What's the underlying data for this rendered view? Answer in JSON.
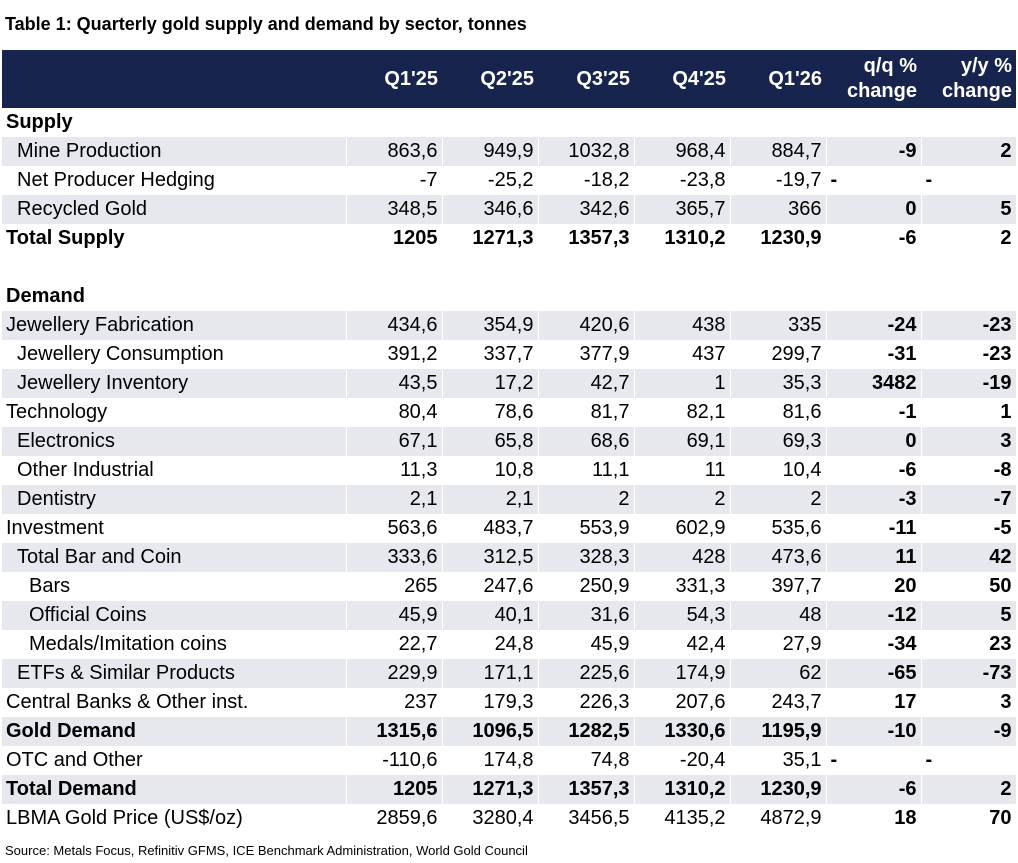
{
  "title": "Table 1: Quarterly gold supply and demand by sector, tonnes",
  "headers": [
    "",
    "Q1'25",
    "Q2'25",
    "Q3'25",
    "Q4'25",
    "Q1'26",
    "q/q % change",
    "y/y % change"
  ],
  "sections": [
    {
      "name": "Supply",
      "rows": [
        {
          "label": "Mine Production",
          "indent": 1,
          "bold": false,
          "shaded": true,
          "values": [
            "863,6",
            "949,9",
            "1032,8",
            "968,4",
            "884,7"
          ],
          "qq": "-9",
          "yy": "2"
        },
        {
          "label": "Net Producer Hedging",
          "indent": 1,
          "bold": false,
          "shaded": false,
          "values": [
            "-7",
            "-25,2",
            "-18,2",
            "-23,8",
            "-19,7"
          ],
          "qq": "-",
          "yy": "-"
        },
        {
          "label": "Recycled Gold",
          "indent": 1,
          "bold": false,
          "shaded": true,
          "values": [
            "348,5",
            "346,6",
            "342,6",
            "365,7",
            "366"
          ],
          "qq": "0",
          "yy": "5"
        },
        {
          "label": "Total Supply",
          "indent": 0,
          "bold": true,
          "shaded": false,
          "values": [
            "1205",
            "1271,3",
            "1357,3",
            "1310,2",
            "1230,9"
          ],
          "qq": "-6",
          "yy": "2"
        }
      ]
    },
    {
      "name": "Demand",
      "rows": [
        {
          "label": "Jewellery Fabrication",
          "indent": 0,
          "bold": false,
          "shaded": true,
          "values": [
            "434,6",
            "354,9",
            "420,6",
            "438",
            "335"
          ],
          "qq": "-24",
          "yy": "-23"
        },
        {
          "label": "Jewellery Consumption",
          "indent": 1,
          "bold": false,
          "shaded": false,
          "values": [
            "391,2",
            "337,7",
            "377,9",
            "437",
            "299,7"
          ],
          "qq": "-31",
          "yy": "-23"
        },
        {
          "label": "Jewellery Inventory",
          "indent": 1,
          "bold": false,
          "shaded": true,
          "values": [
            "43,5",
            "17,2",
            "42,7",
            "1",
            "35,3"
          ],
          "qq": "3482",
          "yy": "-19"
        },
        {
          "label": "Technology",
          "indent": 0,
          "bold": false,
          "shaded": false,
          "values": [
            "80,4",
            "78,6",
            "81,7",
            "82,1",
            "81,6"
          ],
          "qq": "-1",
          "yy": "1"
        },
        {
          "label": "Electronics",
          "indent": 1,
          "bold": false,
          "shaded": true,
          "values": [
            "67,1",
            "65,8",
            "68,6",
            "69,1",
            "69,3"
          ],
          "qq": "0",
          "yy": "3"
        },
        {
          "label": "Other Industrial",
          "indent": 1,
          "bold": false,
          "shaded": false,
          "values": [
            "11,3",
            "10,8",
            "11,1",
            "11",
            "10,4"
          ],
          "qq": "-6",
          "yy": "-8"
        },
        {
          "label": "Dentistry",
          "indent": 1,
          "bold": false,
          "shaded": true,
          "values": [
            "2,1",
            "2,1",
            "2",
            "2",
            "2"
          ],
          "qq": "-3",
          "yy": "-7"
        },
        {
          "label": "Investment",
          "indent": 0,
          "bold": false,
          "shaded": false,
          "values": [
            "563,6",
            "483,7",
            "553,9",
            "602,9",
            "535,6"
          ],
          "qq": "-11",
          "yy": "-5"
        },
        {
          "label": "Total Bar and Coin",
          "indent": 1,
          "bold": false,
          "shaded": true,
          "values": [
            "333,6",
            "312,5",
            "328,3",
            "428",
            "473,6"
          ],
          "qq": "11",
          "yy": "42"
        },
        {
          "label": "Bars",
          "indent": 2,
          "bold": false,
          "shaded": false,
          "values": [
            "265",
            "247,6",
            "250,9",
            "331,3",
            "397,7"
          ],
          "qq": "20",
          "yy": "50"
        },
        {
          "label": "Official Coins",
          "indent": 2,
          "bold": false,
          "shaded": true,
          "values": [
            "45,9",
            "40,1",
            "31,6",
            "54,3",
            "48"
          ],
          "qq": "-12",
          "yy": "5"
        },
        {
          "label": "Medals/Imitation coins",
          "indent": 2,
          "bold": false,
          "shaded": false,
          "values": [
            "22,7",
            "24,8",
            "45,9",
            "42,4",
            "27,9"
          ],
          "qq": "-34",
          "yy": "23"
        },
        {
          "label": "ETFs & Similar Products",
          "indent": 1,
          "bold": false,
          "shaded": true,
          "values": [
            "229,9",
            "171,1",
            "225,6",
            "174,9",
            "62"
          ],
          "qq": "-65",
          "yy": "-73"
        },
        {
          "label": "Central Banks & Other inst.",
          "indent": 0,
          "bold": false,
          "shaded": false,
          "values": [
            "237",
            "179,3",
            "226,3",
            "207,6",
            "243,7"
          ],
          "qq": "17",
          "yy": "3"
        },
        {
          "label": "Gold Demand",
          "indent": 0,
          "bold": true,
          "shaded": true,
          "values": [
            "1315,6",
            "1096,5",
            "1282,5",
            "1330,6",
            "1195,9"
          ],
          "qq": "-10",
          "yy": "-9"
        },
        {
          "label": "OTC and Other",
          "indent": 0,
          "bold": false,
          "shaded": false,
          "values": [
            "-110,6",
            "174,8",
            "74,8",
            "-20,4",
            "35,1"
          ],
          "qq": "-",
          "yy": "-"
        },
        {
          "label": "Total Demand",
          "indent": 0,
          "bold": true,
          "shaded": true,
          "values": [
            "1205",
            "1271,3",
            "1357,3",
            "1310,2",
            "1230,9"
          ],
          "qq": "-6",
          "yy": "2"
        },
        {
          "label": "LBMA Gold Price (US$/oz)",
          "indent": 0,
          "bold": false,
          "shaded": false,
          "values": [
            "2859,6",
            "3280,4",
            "3456,5",
            "4135,2",
            "4872,9"
          ],
          "qq": "18",
          "yy": "70"
        }
      ]
    }
  ],
  "source": "Source: Metals Focus, Refinitiv GFMS, ICE Benchmark Administration, World Gold Council",
  "colors": {
    "header_bg": "#17244d",
    "header_text": "#ffffff",
    "shaded_row": "#e6e8ed"
  }
}
